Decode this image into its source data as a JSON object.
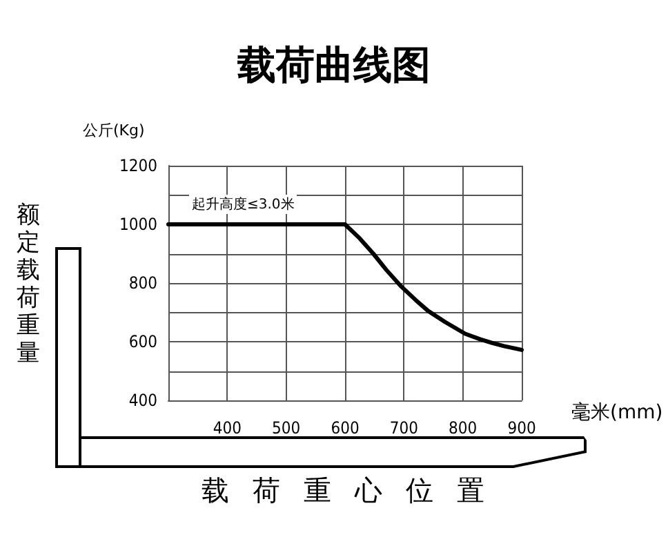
{
  "chart_data": {
    "type": "line",
    "title": "载荷曲线图",
    "xlabel": "载荷重心位置",
    "ylabel": "额定载荷重量",
    "annotations": [
      "公斤(Kg)",
      "毫米(mm)",
      "起升高度≤3.0米"
    ],
    "x": [
      300,
      600,
      625,
      648,
      670,
      694,
      720,
      741,
      770,
      804,
      830,
      851,
      870,
      900
    ],
    "series": [
      {
        "color": "#000000",
        "values": [
          1000,
          1000,
          952,
          900,
          845,
          791,
          742,
          705,
          667,
          627,
          608,
          595,
          585,
          572
        ]
      }
    ],
    "xlim": [
      300,
      900
    ],
    "xticks": [
      {
        "value": 300,
        "label": null
      },
      400,
      500,
      600,
      700,
      800,
      900
    ],
    "ylim": [
      400,
      1200
    ],
    "yticks": [
      400,
      {
        "value": 500,
        "label": null
      },
      600,
      {
        "value": 700,
        "label": null
      },
      800,
      {
        "value": 900,
        "label": null
      },
      1000,
      {
        "value": 1100,
        "label": null
      },
      1200
    ],
    "grid": true,
    "marker": "none",
    "line_style": "solid"
  }
}
